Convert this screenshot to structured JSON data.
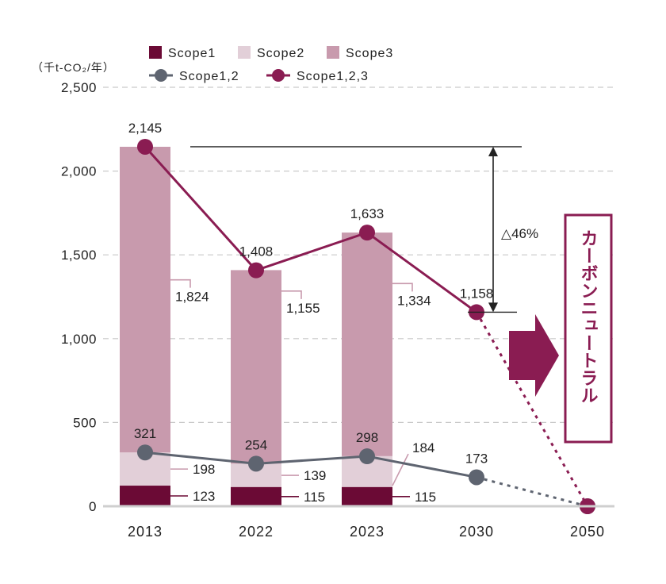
{
  "chart_data": {
    "type": "bar",
    "unit_label": "（千t-CO₂/年）",
    "categories": [
      "2013",
      "2022",
      "2023",
      "2030",
      "2050"
    ],
    "ylim": [
      0,
      2500
    ],
    "y_ticks": [
      0,
      500,
      1000,
      1500,
      2000,
      2500
    ],
    "y_tick_labels": [
      "0",
      "500",
      "1,000",
      "1,500",
      "2,000",
      "2,500"
    ],
    "grid": true,
    "legend_placement": "top",
    "bar_series": [
      {
        "name": "Scope1",
        "color": "#6b0a35",
        "values": [
          123,
          115,
          115,
          null,
          null
        ],
        "labels": [
          "123",
          "115",
          "115",
          "",
          ""
        ]
      },
      {
        "name": "Scope2",
        "color": "#e2cfd8",
        "values": [
          198,
          139,
          184,
          null,
          null
        ],
        "labels": [
          "198",
          "139",
          "184",
          "",
          ""
        ]
      },
      {
        "name": "Scope3",
        "color": "#c89aad",
        "values": [
          1824,
          1155,
          1334,
          null,
          null
        ],
        "labels": [
          "1,824",
          "1,155",
          "1,334",
          "",
          ""
        ]
      }
    ],
    "line_series": [
      {
        "name": "Scope1,2",
        "color": "#5e6470",
        "values": [
          321,
          254,
          298,
          173,
          0
        ],
        "labels": [
          "321",
          "254",
          "298",
          "173",
          ""
        ],
        "dashed_from_index": 3
      },
      {
        "name": "Scope1,2,3",
        "color": "#8a1c52",
        "values": [
          2145,
          1408,
          1633,
          1158,
          0
        ],
        "labels": [
          "2,145",
          "1,408",
          "1,633",
          "1,158",
          ""
        ],
        "dashed_from_index": 3
      }
    ],
    "annotations": {
      "reduction_label": "△46%",
      "reduction_from": 2145,
      "reduction_to": 1158,
      "goal_text": "カーボンニュートラル"
    }
  }
}
